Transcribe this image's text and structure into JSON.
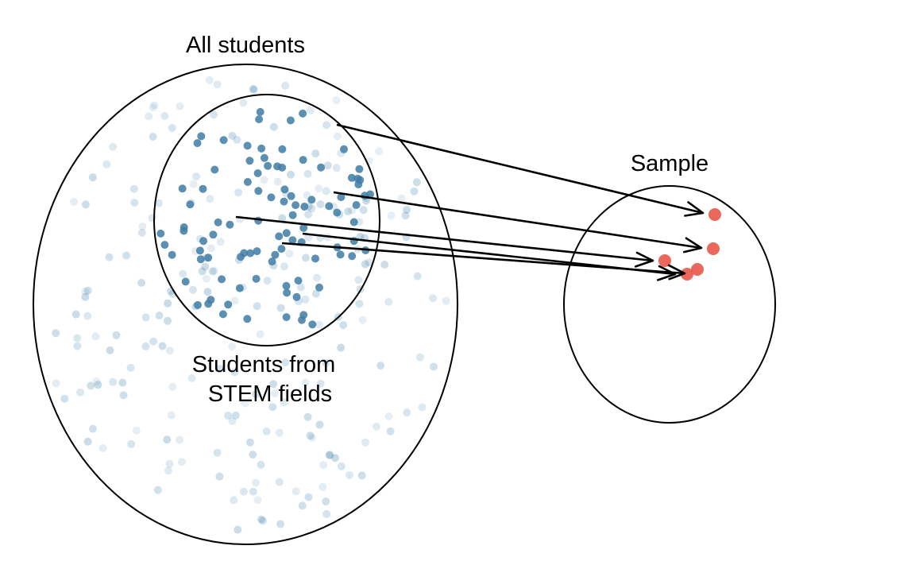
{
  "labels": {
    "population": "All students",
    "subgroup_line1": "Students from",
    "subgroup_line2": "STEM fields",
    "sample": "Sample"
  },
  "colors": {
    "background_point": "#3A7FA8",
    "stem_point": "#3F7CA4",
    "sample_point": "#E8564A",
    "outline": "#000000"
  },
  "legend": "none",
  "arrows_count": 5,
  "sample_points_count": 5
}
